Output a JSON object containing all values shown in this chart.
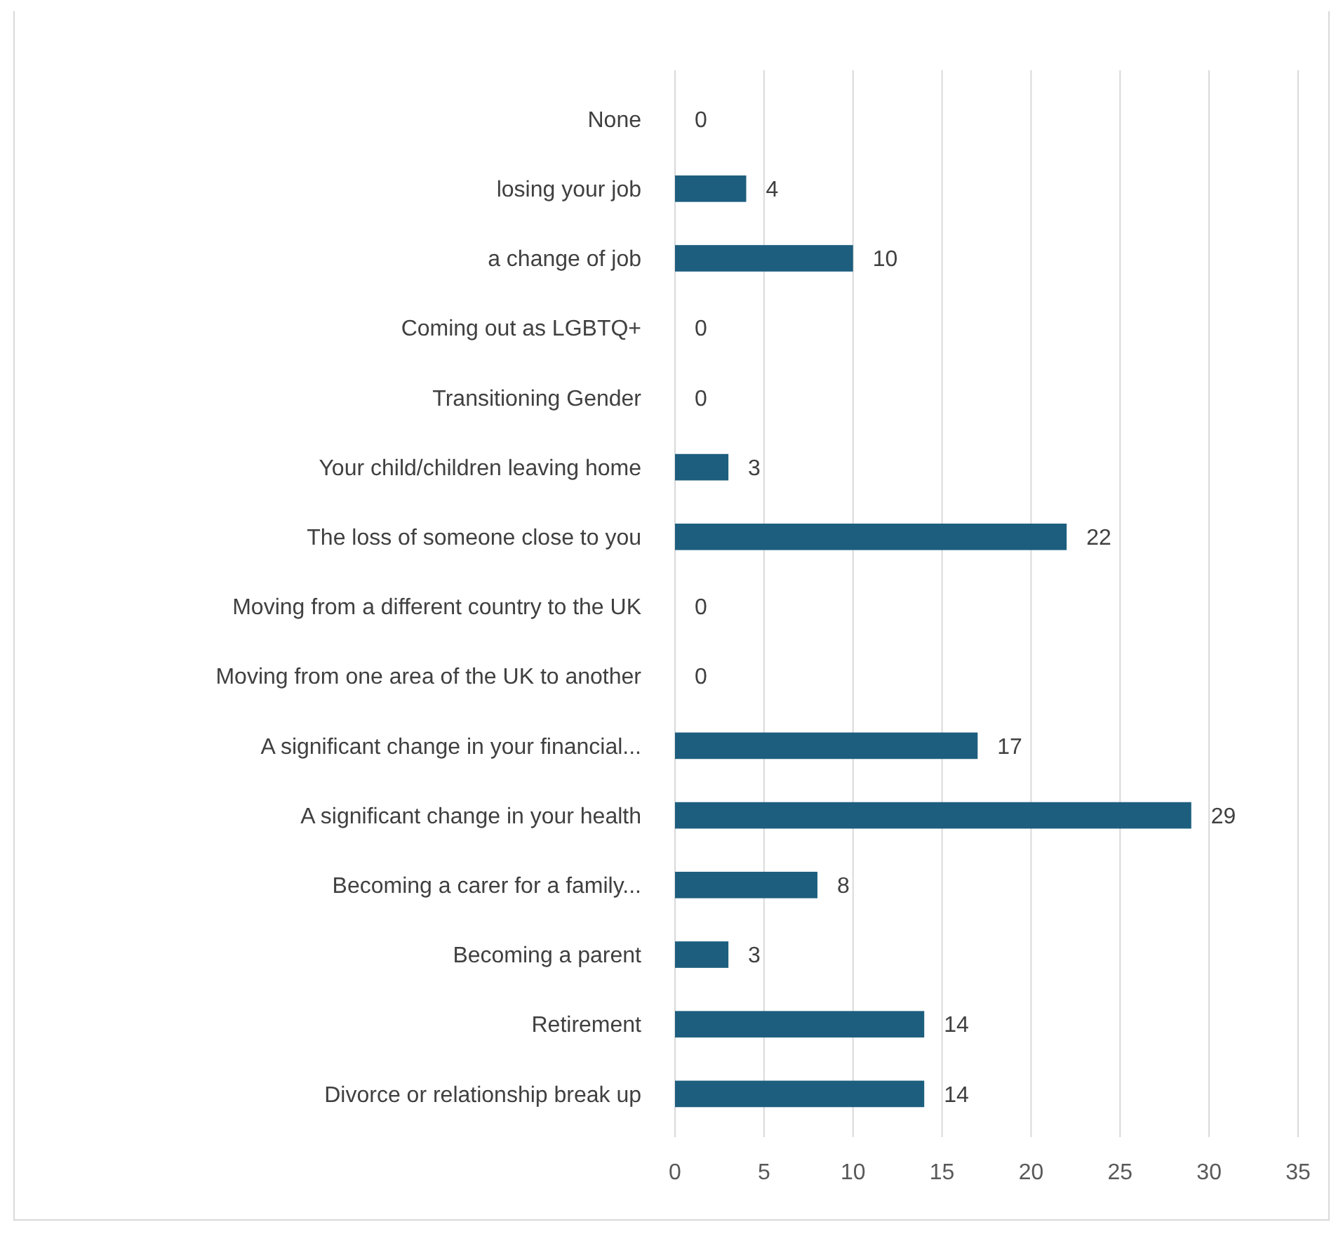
{
  "chart_data": {
    "type": "bar",
    "orientation": "horizontal",
    "categories": [
      "None",
      "losing your job",
      "a change of job",
      "Coming out as LGBTQ+",
      "Transitioning Gender",
      "Your child/children leaving home",
      "The loss of someone close to you",
      "Moving from a different country to the UK",
      "Moving from one area of the UK to another",
      "A significant change in your financial...",
      "A significant change in your health",
      "Becoming a carer for a family...",
      "Becoming a parent",
      "Retirement",
      "Divorce or relationship break up"
    ],
    "values": [
      0,
      4,
      10,
      0,
      0,
      3,
      22,
      0,
      0,
      17,
      29,
      8,
      3,
      14,
      14
    ],
    "color": "#1d5e7e",
    "xlim": [
      0,
      35
    ],
    "xticks": [
      0,
      5,
      10,
      15,
      20,
      25,
      30,
      35
    ],
    "grid": "x",
    "data_labels": true
  }
}
